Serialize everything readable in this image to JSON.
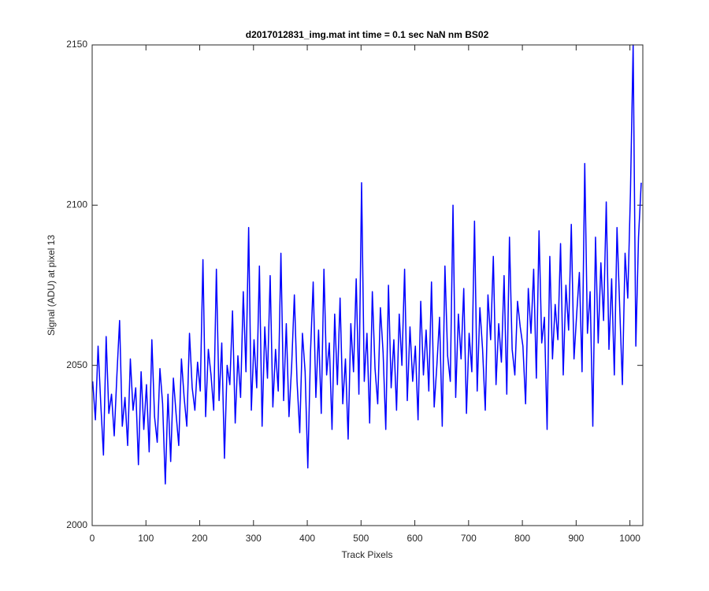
{
  "chart_data": {
    "type": "line",
    "title": "d2017012831_img.mat int time = 0.1 sec  NaN nm BS02",
    "x_label": "Track Pixels",
    "y_label": "Signal (ADU) at pixel 13",
    "xlim": [
      0,
      1024
    ],
    "ylim": [
      2000,
      2150
    ],
    "xticks": [
      0,
      100,
      200,
      300,
      400,
      500,
      600,
      700,
      800,
      900,
      1000
    ],
    "yticks": [
      2000,
      2050,
      2100,
      2150
    ],
    "grid": false,
    "x": [
      1,
      6,
      11,
      16,
      21,
      26,
      31,
      36,
      41,
      46,
      51,
      56,
      61,
      66,
      71,
      76,
      81,
      86,
      91,
      96,
      101,
      106,
      111,
      116,
      121,
      126,
      131,
      136,
      141,
      146,
      151,
      156,
      161,
      166,
      171,
      176,
      181,
      186,
      191,
      196,
      201,
      206,
      211,
      216,
      221,
      226,
      231,
      236,
      241,
      246,
      251,
      256,
      261,
      266,
      271,
      276,
      281,
      286,
      291,
      296,
      301,
      306,
      311,
      316,
      321,
      326,
      331,
      336,
      341,
      346,
      351,
      356,
      361,
      366,
      371,
      376,
      381,
      386,
      391,
      396,
      401,
      406,
      411,
      416,
      421,
      426,
      431,
      436,
      441,
      446,
      451,
      456,
      461,
      466,
      471,
      476,
      481,
      486,
      491,
      496,
      501,
      506,
      511,
      516,
      521,
      526,
      531,
      536,
      541,
      546,
      551,
      556,
      561,
      566,
      571,
      576,
      581,
      586,
      591,
      596,
      601,
      606,
      611,
      616,
      621,
      626,
      631,
      636,
      641,
      646,
      651,
      656,
      661,
      666,
      671,
      676,
      681,
      686,
      691,
      696,
      701,
      706,
      711,
      716,
      721,
      726,
      731,
      736,
      741,
      746,
      751,
      756,
      761,
      766,
      771,
      776,
      781,
      786,
      791,
      796,
      801,
      806,
      811,
      816,
      821,
      826,
      831,
      836,
      841,
      846,
      851,
      856,
      861,
      866,
      871,
      876,
      881,
      886,
      891,
      896,
      901,
      906,
      911,
      916,
      921,
      926,
      931,
      936,
      941,
      946,
      951,
      956,
      961,
      966,
      971,
      976,
      981,
      986,
      991,
      996,
      1001,
      1006,
      1011,
      1016,
      1021
    ],
    "series": [
      {
        "name": "pixel 13",
        "color": "#0000ff",
        "values": [
          2045,
          2033,
          2056,
          2038,
          2022,
          2059,
          2035,
          2041,
          2028,
          2047,
          2064,
          2031,
          2040,
          2025,
          2052,
          2036,
          2043,
          2019,
          2048,
          2030,
          2044,
          2023,
          2058,
          2034,
          2026,
          2049,
          2038,
          2013,
          2041,
          2020,
          2046,
          2035,
          2025,
          2052,
          2040,
          2031,
          2060,
          2043,
          2036,
          2051,
          2042,
          2083,
          2034,
          2055,
          2047,
          2036,
          2080,
          2039,
          2057,
          2021,
          2050,
          2044,
          2067,
          2032,
          2053,
          2040,
          2073,
          2048,
          2093,
          2036,
          2058,
          2043,
          2081,
          2031,
          2062,
          2046,
          2078,
          2037,
          2055,
          2042,
          2085,
          2039,
          2063,
          2034,
          2050,
          2072,
          2045,
          2029,
          2060,
          2048,
          2018,
          2054,
          2076,
          2040,
          2061,
          2035,
          2080,
          2047,
          2057,
          2030,
          2066,
          2044,
          2071,
          2038,
          2052,
          2027,
          2063,
          2048,
          2077,
          2041,
          2107,
          2045,
          2060,
          2032,
          2073,
          2049,
          2038,
          2068,
          2054,
          2030,
          2075,
          2043,
          2058,
          2036,
          2066,
          2050,
          2080,
          2039,
          2062,
          2045,
          2056,
          2033,
          2070,
          2047,
          2061,
          2042,
          2076,
          2037,
          2050,
          2065,
          2031,
          2081,
          2053,
          2045,
          2100,
          2040,
          2066,
          2052,
          2074,
          2035,
          2060,
          2048,
          2095,
          2042,
          2068,
          2055,
          2036,
          2072,
          2058,
          2084,
          2044,
          2063,
          2051,
          2078,
          2041,
          2090,
          2055,
          2047,
          2070,
          2062,
          2056,
          2038,
          2074,
          2060,
          2080,
          2046,
          2092,
          2057,
          2065,
          2030,
          2084,
          2052,
          2069,
          2058,
          2088,
          2047,
          2075,
          2061,
          2094,
          2052,
          2066,
          2079,
          2048,
          2113,
          2060,
          2073,
          2031,
          2090,
          2057,
          2082,
          2064,
          2101,
          2055,
          2077,
          2047,
          2093,
          2068,
          2044,
          2085,
          2071,
          2104,
          2150,
          2056,
          2090,
          2107
        ]
      }
    ]
  }
}
